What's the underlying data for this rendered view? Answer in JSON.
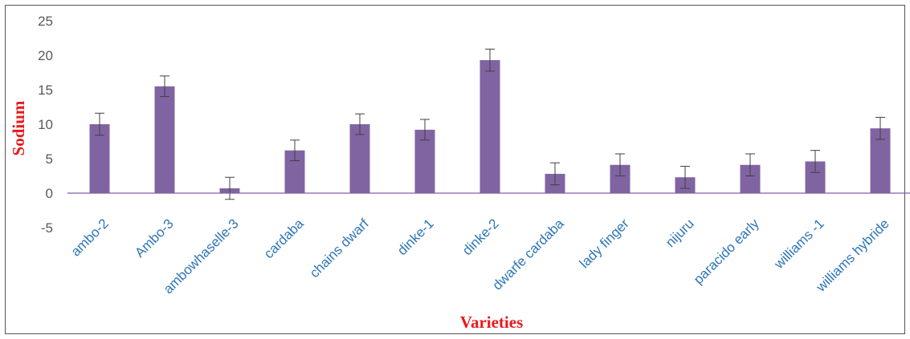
{
  "chart_data": {
    "type": "bar",
    "xlabel": "Varieties",
    "ylabel": "Sodium",
    "categories": [
      "ambo-2",
      "Ambo-3",
      "ambowhaselle-3",
      "cardaba",
      "chains dwarf",
      "dinke-1",
      "dinke-2",
      "dwarfe cardaba",
      "lady finger",
      "nijuru",
      "paracido early",
      "williams -1",
      "williams hybride"
    ],
    "values": [
      10,
      15.5,
      0.7,
      6.2,
      10,
      9.2,
      19.3,
      2.8,
      4.1,
      2.3,
      4.1,
      4.6,
      9.4
    ],
    "error": [
      1.6,
      1.5,
      1.6,
      1.5,
      1.5,
      1.5,
      1.6,
      1.6,
      1.6,
      1.6,
      1.6,
      1.6,
      1.6
    ],
    "ylim": [
      -5,
      25
    ],
    "yticks": [
      -5,
      0,
      5,
      10,
      15,
      20,
      25
    ],
    "grid": false,
    "legend": "none"
  },
  "colors": {
    "bar": "#8064a2",
    "zero_line": "#7f5fa9",
    "error_bar": "#404040",
    "tick_label_x": "#2e75b6",
    "tick_label_y": "#595959",
    "axis_title": "#e8191c"
  }
}
